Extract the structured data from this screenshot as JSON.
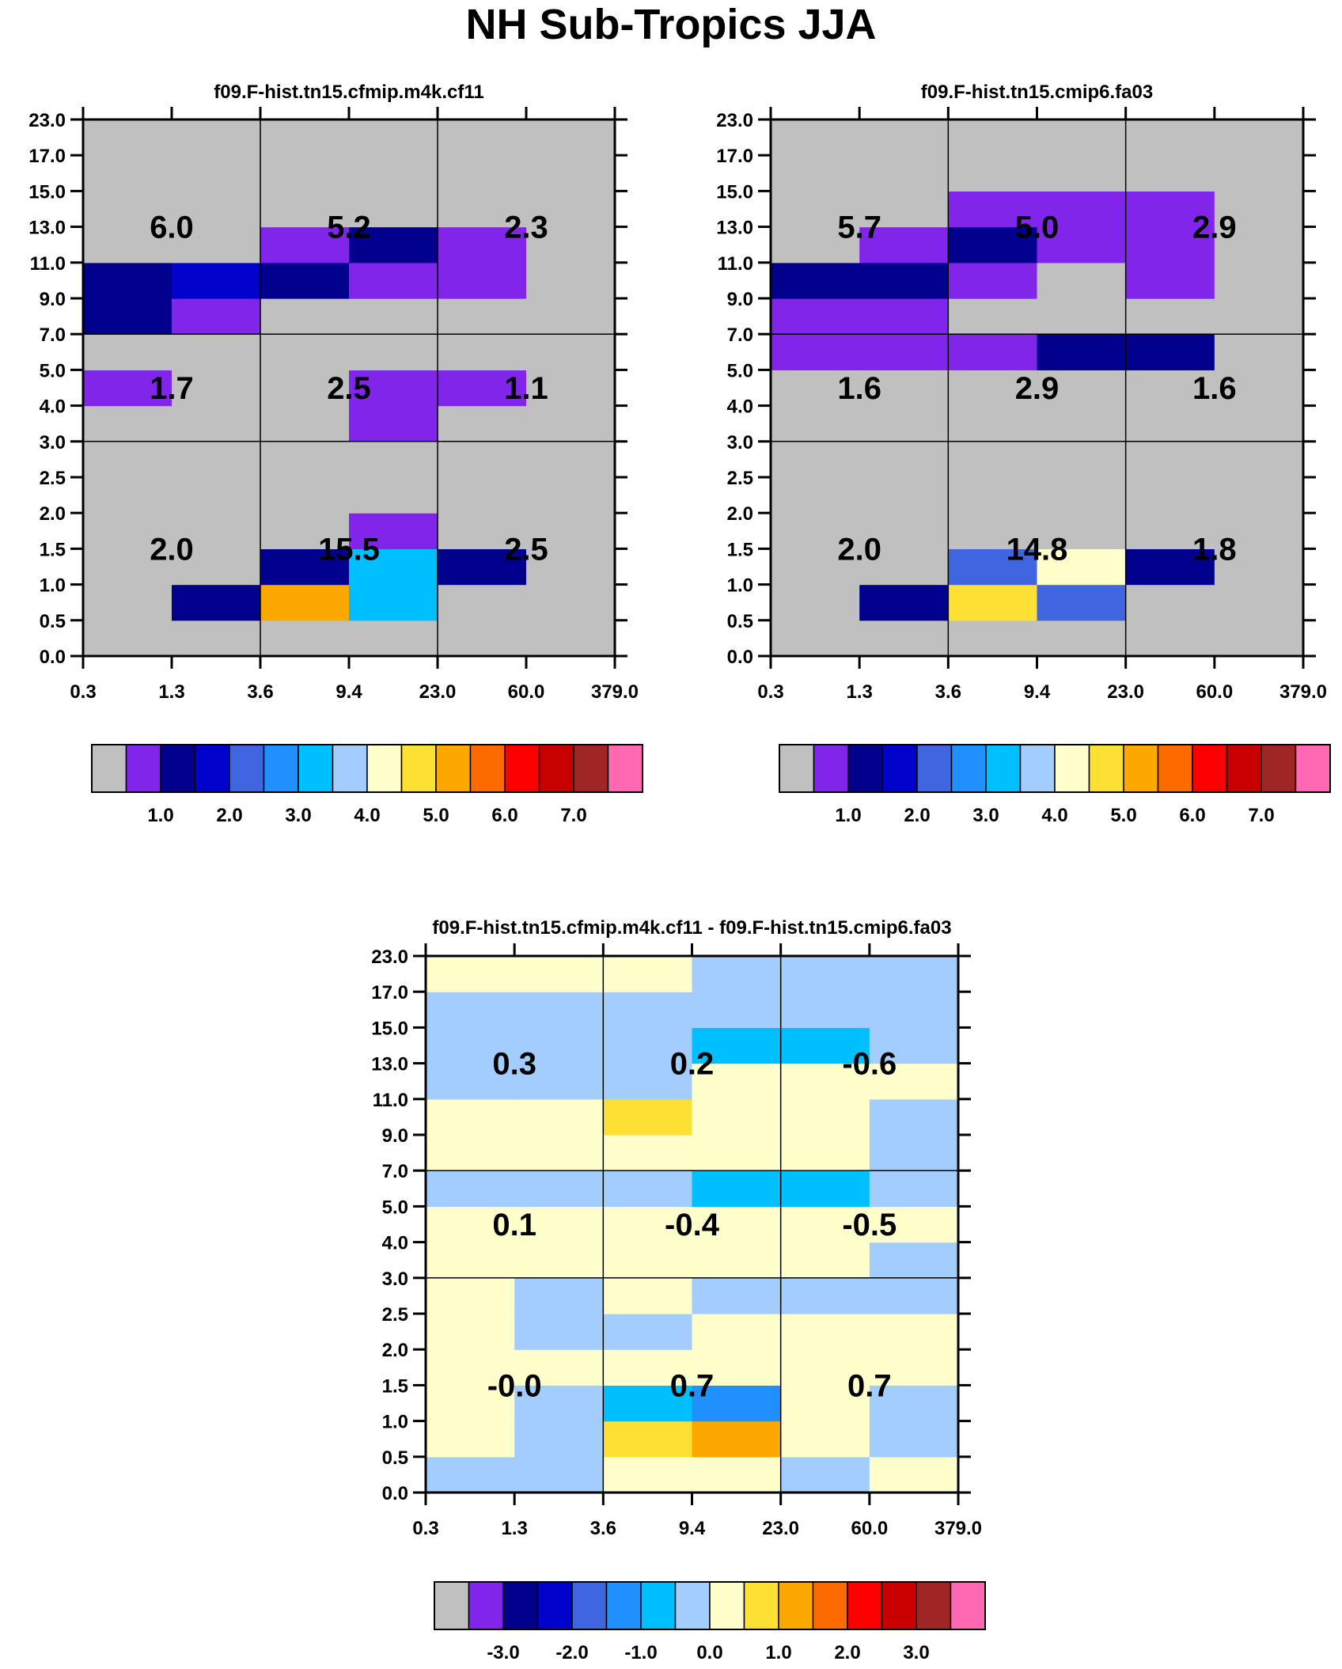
{
  "figure": {
    "title": "NH Sub-Tropics JJA"
  },
  "colors": {
    "palette": [
      "#c0c0c0",
      "#8125ea",
      "#01018e",
      "#0202cd",
      "#4065e0",
      "#1f90fe",
      "#00bfff",
      "#a2cdfc",
      "#ffffcc",
      "#fde034",
      "#fda800",
      "#fd6a00",
      "#fe0000",
      "#c80000",
      "#a02626",
      "#ff69b4"
    ],
    "background": "#ffffff"
  },
  "chart_data": [
    {
      "type": "heatmap",
      "name": "panel-cfmip",
      "title": "f09.F-hist.tn15.cfmip.m4k.cf11",
      "x_tick_labels": [
        "0.3",
        "1.3",
        "3.6",
        "9.4",
        "23.0",
        "60.0",
        "379.0"
      ],
      "y_tick_labels": [
        "0.0",
        "0.5",
        "1.0",
        "1.5",
        "2.0",
        "2.5",
        "3.0",
        "4.0",
        "5.0",
        "7.0",
        "9.0",
        "11.0",
        "13.0",
        "15.0",
        "17.0",
        "23.0"
      ],
      "x_group_boundaries": [
        2,
        4
      ],
      "y_group_boundaries": [
        6,
        9
      ],
      "group_totals": [
        {
          "x_group": 0,
          "y_group": 2,
          "label": "6.0"
        },
        {
          "x_group": 1,
          "y_group": 2,
          "label": "5.2"
        },
        {
          "x_group": 2,
          "y_group": 2,
          "label": "2.3"
        },
        {
          "x_group": 0,
          "y_group": 1,
          "label": "1.7"
        },
        {
          "x_group": 1,
          "y_group": 1,
          "label": "2.5"
        },
        {
          "x_group": 2,
          "y_group": 1,
          "label": "1.1"
        },
        {
          "x_group": 0,
          "y_group": 0,
          "label": "2.0"
        },
        {
          "x_group": 1,
          "y_group": 0,
          "label": "15.5"
        },
        {
          "x_group": 2,
          "y_group": 0,
          "label": "2.5"
        }
      ],
      "grid_color_index": [
        [
          0,
          0,
          0,
          0,
          0,
          0
        ],
        [
          0,
          2,
          10,
          6,
          0,
          0
        ],
        [
          0,
          0,
          2,
          6,
          2,
          0
        ],
        [
          0,
          0,
          0,
          1,
          0,
          0
        ],
        [
          0,
          0,
          0,
          0,
          0,
          0
        ],
        [
          0,
          0,
          0,
          0,
          0,
          0
        ],
        [
          0,
          0,
          0,
          1,
          0,
          0
        ],
        [
          1,
          0,
          0,
          1,
          1,
          0
        ],
        [
          0,
          0,
          0,
          0,
          0,
          0
        ],
        [
          2,
          1,
          0,
          0,
          0,
          0
        ],
        [
          2,
          3,
          2,
          1,
          1,
          0
        ],
        [
          0,
          0,
          1,
          2,
          1,
          0
        ],
        [
          0,
          0,
          0,
          0,
          0,
          0
        ],
        [
          0,
          0,
          0,
          0,
          0,
          0
        ],
        [
          0,
          0,
          0,
          0,
          0,
          0
        ]
      ],
      "colorbar": {
        "color_indices": [
          0,
          1,
          2,
          3,
          4,
          5,
          6,
          7,
          8,
          9,
          10,
          11,
          12,
          13,
          14,
          15
        ],
        "tick_labels": [
          "1.0",
          "2.0",
          "3.0",
          "4.0",
          "5.0",
          "6.0",
          "7.0"
        ],
        "tick_boundaries": [
          2,
          4,
          6,
          8,
          10,
          12,
          14
        ]
      }
    },
    {
      "type": "heatmap",
      "name": "panel-cmip6",
      "title": "f09.F-hist.tn15.cmip6.fa03",
      "x_tick_labels": [
        "0.3",
        "1.3",
        "3.6",
        "9.4",
        "23.0",
        "60.0",
        "379.0"
      ],
      "y_tick_labels": [
        "0.0",
        "0.5",
        "1.0",
        "1.5",
        "2.0",
        "2.5",
        "3.0",
        "4.0",
        "5.0",
        "7.0",
        "9.0",
        "11.0",
        "13.0",
        "15.0",
        "17.0",
        "23.0"
      ],
      "x_group_boundaries": [
        2,
        4
      ],
      "y_group_boundaries": [
        6,
        9
      ],
      "group_totals": [
        {
          "x_group": 0,
          "y_group": 2,
          "label": "5.7"
        },
        {
          "x_group": 1,
          "y_group": 2,
          "label": "5.0"
        },
        {
          "x_group": 2,
          "y_group": 2,
          "label": "2.9"
        },
        {
          "x_group": 0,
          "y_group": 1,
          "label": "1.6"
        },
        {
          "x_group": 1,
          "y_group": 1,
          "label": "2.9"
        },
        {
          "x_group": 2,
          "y_group": 1,
          "label": "1.6"
        },
        {
          "x_group": 0,
          "y_group": 0,
          "label": "2.0"
        },
        {
          "x_group": 1,
          "y_group": 0,
          "label": "14.8"
        },
        {
          "x_group": 2,
          "y_group": 0,
          "label": "1.8"
        }
      ],
      "grid_color_index": [
        [
          0,
          0,
          0,
          0,
          0,
          0
        ],
        [
          0,
          2,
          9,
          4,
          0,
          0
        ],
        [
          0,
          0,
          4,
          8,
          2,
          0
        ],
        [
          0,
          0,
          0,
          0,
          0,
          0
        ],
        [
          0,
          0,
          0,
          0,
          0,
          0
        ],
        [
          0,
          0,
          0,
          0,
          0,
          0
        ],
        [
          0,
          0,
          0,
          0,
          0,
          0
        ],
        [
          0,
          0,
          0,
          0,
          0,
          0
        ],
        [
          1,
          1,
          1,
          2,
          2,
          0
        ],
        [
          1,
          1,
          0,
          0,
          0,
          0
        ],
        [
          2,
          2,
          1,
          0,
          1,
          0
        ],
        [
          0,
          1,
          2,
          1,
          1,
          0
        ],
        [
          0,
          0,
          1,
          1,
          1,
          0
        ],
        [
          0,
          0,
          0,
          0,
          0,
          0
        ],
        [
          0,
          0,
          0,
          0,
          0,
          0
        ]
      ],
      "colorbar": {
        "color_indices": [
          0,
          1,
          2,
          3,
          4,
          5,
          6,
          7,
          8,
          9,
          10,
          11,
          12,
          13,
          14,
          15
        ],
        "tick_labels": [
          "1.0",
          "2.0",
          "3.0",
          "4.0",
          "5.0",
          "6.0",
          "7.0"
        ],
        "tick_boundaries": [
          2,
          4,
          6,
          8,
          10,
          12,
          14
        ]
      }
    },
    {
      "type": "heatmap",
      "name": "panel-difference",
      "title": "f09.F-hist.tn15.cfmip.m4k.cf11 - f09.F-hist.tn15.cmip6.fa03",
      "x_tick_labels": [
        "0.3",
        "1.3",
        "3.6",
        "9.4",
        "23.0",
        "60.0",
        "379.0"
      ],
      "y_tick_labels": [
        "0.0",
        "0.5",
        "1.0",
        "1.5",
        "2.0",
        "2.5",
        "3.0",
        "4.0",
        "5.0",
        "7.0",
        "9.0",
        "11.0",
        "13.0",
        "15.0",
        "17.0",
        "23.0"
      ],
      "x_group_boundaries": [
        2,
        4
      ],
      "y_group_boundaries": [
        6,
        9
      ],
      "group_totals": [
        {
          "x_group": 0,
          "y_group": 2,
          "label": "0.3"
        },
        {
          "x_group": 1,
          "y_group": 2,
          "label": "0.2"
        },
        {
          "x_group": 2,
          "y_group": 2,
          "label": "-0.6"
        },
        {
          "x_group": 0,
          "y_group": 1,
          "label": "0.1"
        },
        {
          "x_group": 1,
          "y_group": 1,
          "label": "-0.4"
        },
        {
          "x_group": 2,
          "y_group": 1,
          "label": "-0.5"
        },
        {
          "x_group": 0,
          "y_group": 0,
          "label": "-0.0"
        },
        {
          "x_group": 1,
          "y_group": 0,
          "label": "0.7"
        },
        {
          "x_group": 2,
          "y_group": 0,
          "label": "0.7"
        }
      ],
      "grid_color_index": [
        [
          7,
          7,
          8,
          8,
          7,
          8
        ],
        [
          8,
          7,
          9,
          10,
          8,
          7
        ],
        [
          8,
          7,
          6,
          5,
          8,
          7
        ],
        [
          8,
          8,
          8,
          8,
          8,
          8
        ],
        [
          8,
          7,
          7,
          8,
          8,
          8
        ],
        [
          8,
          7,
          8,
          7,
          7,
          7
        ],
        [
          8,
          8,
          8,
          8,
          8,
          7
        ],
        [
          8,
          8,
          8,
          8,
          8,
          8
        ],
        [
          7,
          7,
          7,
          6,
          6,
          7
        ],
        [
          8,
          8,
          8,
          8,
          8,
          7
        ],
        [
          8,
          8,
          9,
          8,
          8,
          7
        ],
        [
          7,
          7,
          7,
          8,
          8,
          8
        ],
        [
          7,
          7,
          7,
          6,
          6,
          7
        ],
        [
          7,
          7,
          7,
          7,
          7,
          7
        ],
        [
          8,
          8,
          8,
          7,
          7,
          7
        ]
      ],
      "colorbar": {
        "color_indices": [
          0,
          1,
          2,
          3,
          4,
          5,
          6,
          7,
          8,
          9,
          10,
          11,
          12,
          13,
          14,
          15
        ],
        "tick_labels": [
          "-3.0",
          "-2.0",
          "-1.0",
          "0.0",
          "1.0",
          "2.0",
          "3.0"
        ],
        "tick_boundaries": [
          2,
          4,
          6,
          8,
          10,
          12,
          14
        ]
      }
    }
  ]
}
